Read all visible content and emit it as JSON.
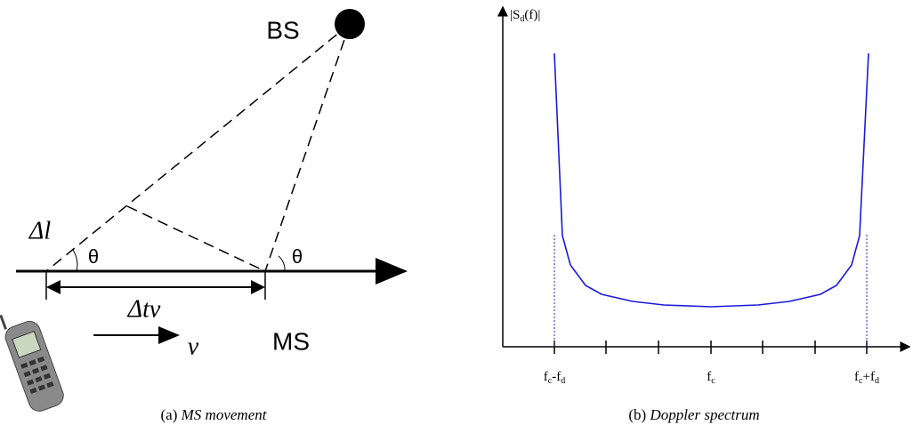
{
  "left": {
    "bs_label": "BS",
    "ms_label": "MS",
    "delta_l": "Δl",
    "theta_1": "θ",
    "theta_2": "θ",
    "delta_tv": "Δtv",
    "velocity": "v",
    "caption": {
      "label": "(a)",
      "text": "MS movement"
    }
  },
  "right": {
    "y_label": {
      "open": "|S",
      "sub": "d",
      "close": "(f)|"
    },
    "tick_labels": [
      {
        "base": "f",
        "sub": "c",
        "mid": "-f",
        "sub2": "d"
      },
      {
        "base": "f",
        "sub": "c"
      },
      {
        "base": "f",
        "sub": "c",
        "mid": "+f",
        "sub2": "d"
      }
    ],
    "caption": {
      "label": "(b)",
      "text": "Doppler spectrum"
    }
  }
}
